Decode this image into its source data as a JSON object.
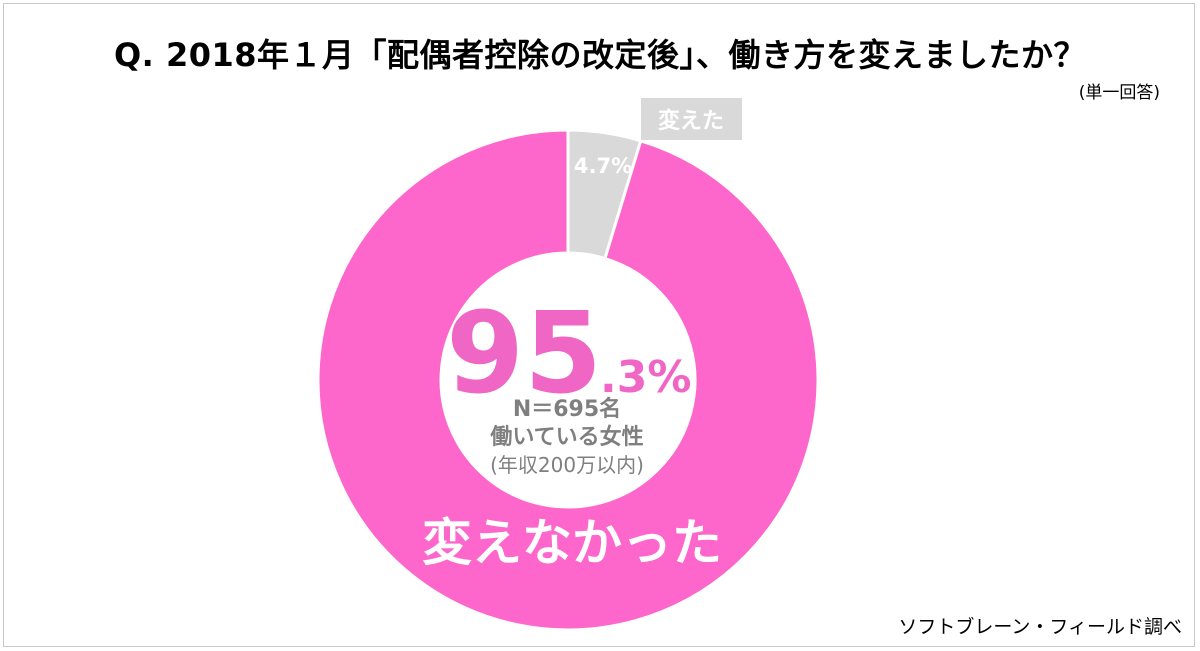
{
  "page": {
    "title": "Q.  2018年１月「配偶者控除の改定後」、働き方を変えましたか？",
    "subtitle": "(単一回答)",
    "source": "ソフトブレーン・フィールド調べ"
  },
  "center": {
    "big_number": "95",
    "decimal": ".3%",
    "n_label": "N＝695名",
    "group_label": "働いている女性",
    "income_label": "(年収200万以内)"
  },
  "colors": {
    "primary": "#fd66cb",
    "secondary": "#d9d9d9",
    "accent_text": "#f066c4",
    "center_text": "#7f7f7f"
  },
  "chart_data": {
    "type": "pie",
    "donut": true,
    "title": "Q.  2018年１月「配偶者控除の改定後」、働き方を変えましたか？",
    "slices": [
      {
        "label": "変えた",
        "value": 4.7,
        "display": "4.7%"
      },
      {
        "label": "変えなかった",
        "value": 95.3,
        "display": "95.3%"
      }
    ],
    "n": 695,
    "unit": "%"
  }
}
